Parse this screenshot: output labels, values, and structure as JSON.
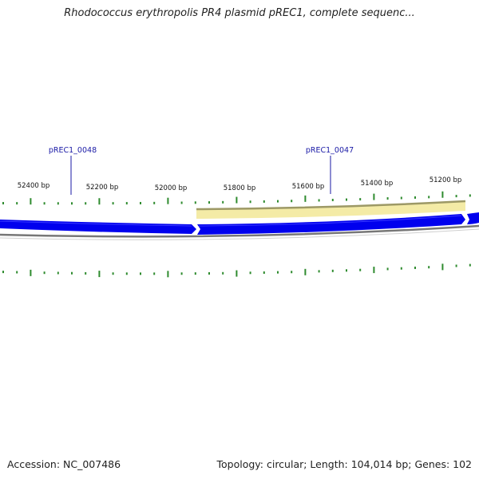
{
  "header": {
    "title": "Rhodococcus erythropolis PR4 plasmid pREC1, complete sequenc..."
  },
  "footer": {
    "accession": "Accession: NC_007486",
    "summary": "Topology: circular; Length: 104,014 bp; Genes: 102"
  },
  "map": {
    "colors": {
      "gene_fill": "#0000ee",
      "gene_highlight": "#2222ff",
      "highlight_region": "#f4eba6",
      "highlight_edge": "#9d9966",
      "backbone": "#777777",
      "tick": "#2e8b2e",
      "gene_label": "#1a1aa6"
    },
    "tick_labels": [
      "52400 bp",
      "52200 bp",
      "52000 bp",
      "51800 bp",
      "51600 bp",
      "51400 bp",
      "51200 bp"
    ],
    "genes": [
      {
        "name": "pREC1_0048",
        "label_icon": "gene-pointer"
      },
      {
        "name": "pREC1_0047",
        "label_icon": "gene-pointer"
      }
    ]
  }
}
